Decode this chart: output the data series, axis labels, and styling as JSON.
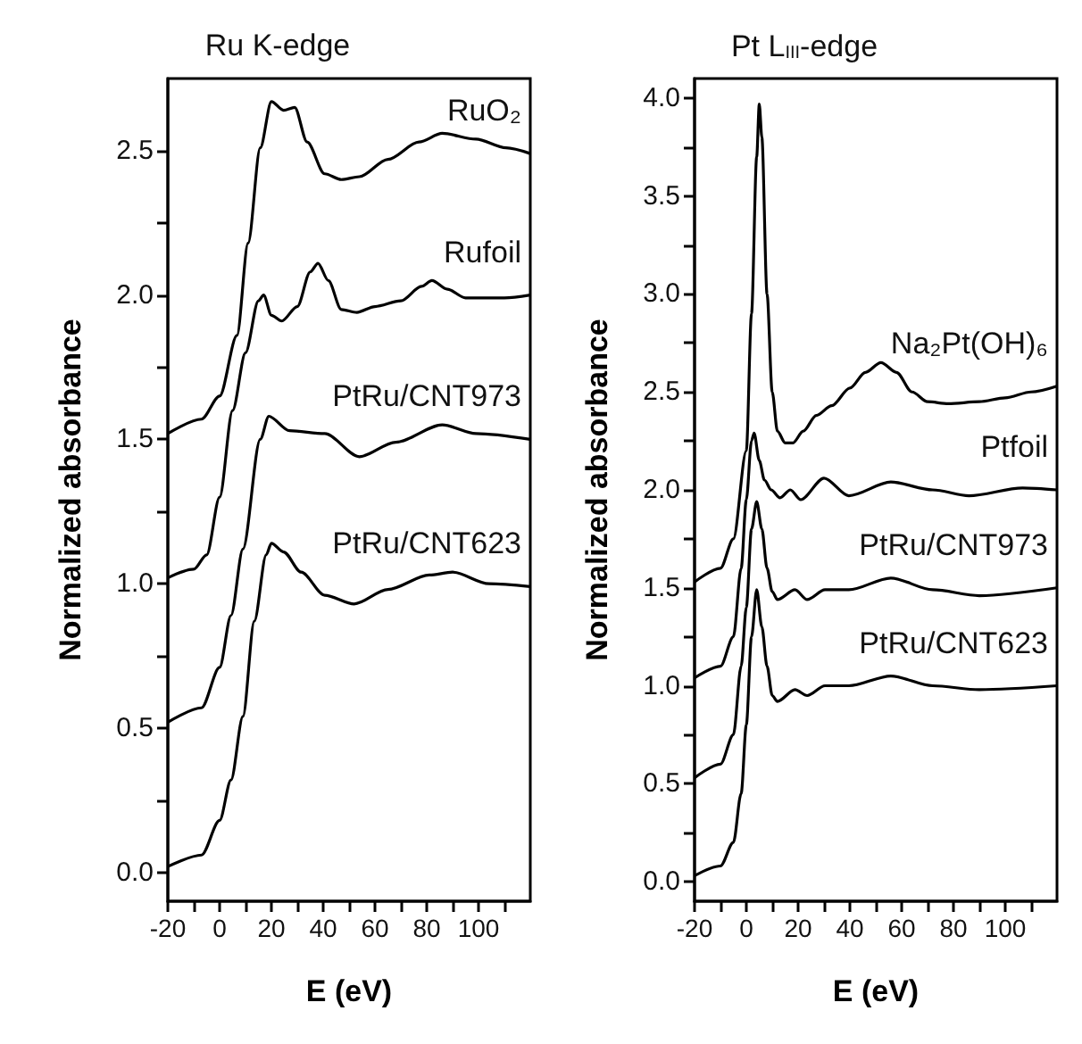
{
  "chart_data": [
    {
      "type": "line",
      "title": "Ru K-edge",
      "xlabel": "E (eV)",
      "ylabel": "Normalized absorbance",
      "xlim": [
        -20,
        120
      ],
      "ylim": [
        -0.1,
        2.75
      ],
      "xticks": [
        -20,
        {
          "value": -10,
          "label": null
        },
        0,
        {
          "value": 10,
          "label": null
        },
        20,
        {
          "value": 30,
          "label": null
        },
        40,
        {
          "value": 50,
          "label": null
        },
        60,
        {
          "value": 70,
          "label": null
        },
        80,
        {
          "value": 90,
          "label": null
        },
        100,
        {
          "value": 110,
          "label": null
        }
      ],
      "yticks": [
        {
          "value": 0,
          "label": "0.0"
        },
        {
          "value": 0.25,
          "label": null
        },
        0.5,
        {
          "value": 0.75,
          "label": null
        },
        {
          "value": 1,
          "label": "1.0"
        },
        {
          "value": 1.25,
          "label": null
        },
        1.5,
        {
          "value": 1.75,
          "label": null
        },
        {
          "value": 2,
          "label": "2.0"
        },
        {
          "value": 2.25,
          "label": null
        },
        2.5
      ],
      "series": [
        {
          "name": "RuO₂",
          "color": "#000000",
          "x": [
            -20,
            -7,
            0,
            6.7,
            11,
            15.7,
            20,
            24.7,
            29,
            33.8,
            40.6,
            47,
            54,
            65,
            77,
            86,
            99,
            110.6,
            120
          ],
          "values": [
            1.52,
            1.57,
            1.65,
            1.86,
            2.18,
            2.51,
            2.67,
            2.64,
            2.65,
            2.53,
            2.42,
            2.4,
            2.41,
            2.47,
            2.53,
            2.56,
            2.54,
            2.51,
            2.49
          ]
        },
        {
          "name": "Rufoil",
          "color": "#000000",
          "x": [
            -20,
            -10,
            -5,
            0,
            5,
            10,
            15,
            17,
            20,
            24,
            30,
            35,
            38,
            42,
            47,
            53,
            60,
            70,
            78,
            82,
            88,
            95,
            110,
            120
          ],
          "values": [
            1.02,
            1.05,
            1.1,
            1.3,
            1.6,
            1.8,
            1.98,
            2.0,
            1.93,
            1.91,
            1.96,
            2.08,
            2.11,
            2.05,
            1.95,
            1.94,
            1.96,
            1.98,
            2.03,
            2.05,
            2.02,
            1.99,
            1.99,
            2.0
          ]
        },
        {
          "name": "PtRu/CNT973",
          "color": "#000000",
          "x": [
            -20,
            -7,
            0,
            4.4,
            9,
            15.7,
            19,
            27,
            40.6,
            54,
            68,
            86,
            99,
            120
          ],
          "values": [
            0.52,
            0.57,
            0.71,
            0.89,
            1.12,
            1.5,
            1.58,
            1.53,
            1.52,
            1.44,
            1.49,
            1.55,
            1.52,
            1.5
          ]
        },
        {
          "name": "PtRu/CNT623",
          "color": "#000000",
          "x": [
            -20,
            -7,
            0,
            4.4,
            9,
            13.4,
            18,
            20,
            24.7,
            31.5,
            40.6,
            52,
            65,
            81,
            90,
            104,
            120
          ],
          "values": [
            0.02,
            0.06,
            0.18,
            0.32,
            0.54,
            0.87,
            1.1,
            1.14,
            1.11,
            1.04,
            0.96,
            0.93,
            0.98,
            1.03,
            1.04,
            1.0,
            0.99
          ]
        }
      ]
    },
    {
      "type": "line",
      "title": "Pt L$_{III}$-edge",
      "xlabel": "E (eV)",
      "ylabel": "Normalized absorbance",
      "xlim": [
        -20,
        120
      ],
      "ylim": [
        -0.1,
        4.1
      ],
      "xticks": [
        -20,
        {
          "value": -10,
          "label": null
        },
        0,
        {
          "value": 10,
          "label": null
        },
        20,
        {
          "value": 30,
          "label": null
        },
        40,
        {
          "value": 50,
          "label": null
        },
        60,
        {
          "value": 70,
          "label": null
        },
        80,
        {
          "value": 90,
          "label": null
        },
        100,
        {
          "value": 110,
          "label": null
        }
      ],
      "yticks": [
        {
          "value": 0,
          "label": "0.0"
        },
        {
          "value": 0.25,
          "label": null
        },
        0.5,
        {
          "value": 0.75,
          "label": null
        },
        {
          "value": 1,
          "label": "1.0"
        },
        {
          "value": 1.25,
          "label": null
        },
        1.5,
        {
          "value": 1.75,
          "label": null
        },
        {
          "value": 2,
          "label": "2.0"
        },
        {
          "value": 2.25,
          "label": null
        },
        2.5,
        {
          "value": 2.75,
          "label": null
        },
        {
          "value": 3,
          "label": "3.0"
        },
        {
          "value": 3.25,
          "label": null
        },
        3.5,
        {
          "value": 3.75,
          "label": null
        },
        {
          "value": 4,
          "label": "4.0"
        }
      ],
      "series": [
        {
          "name": "Na₂Pt(OH)₆",
          "color": "#000000",
          "x": [
            -20,
            -10,
            -5,
            0,
            2,
            4,
            5,
            6,
            8,
            10,
            12,
            15,
            18,
            22,
            27,
            33,
            40,
            46,
            52,
            58,
            64,
            70,
            78,
            90,
            100,
            110,
            120
          ],
          "values": [
            1.53,
            1.6,
            1.75,
            2.2,
            2.9,
            3.7,
            3.97,
            3.8,
            3.0,
            2.5,
            2.3,
            2.24,
            2.24,
            2.3,
            2.38,
            2.43,
            2.52,
            2.6,
            2.65,
            2.6,
            2.5,
            2.45,
            2.44,
            2.45,
            2.47,
            2.5,
            2.53
          ]
        },
        {
          "name": "Ptfoil",
          "color": "#000000",
          "x": [
            -20,
            -10,
            -5,
            -2,
            0,
            2,
            3,
            5,
            7,
            9.6,
            13,
            17,
            21,
            30,
            39.6,
            55.8,
            72,
            86,
            106.7,
            120
          ],
          "values": [
            1.04,
            1.1,
            1.25,
            1.6,
            1.95,
            2.25,
            2.29,
            2.15,
            2.05,
            2.0,
            1.96,
            2.0,
            1.95,
            2.06,
            1.97,
            2.04,
            2.0,
            1.97,
            2.01,
            2.0
          ]
        },
        {
          "name": "PtRu/CNT973",
          "color": "#000000",
          "x": [
            -20,
            -10,
            -5,
            -2,
            0,
            2,
            4,
            6,
            8,
            10,
            12,
            18.8,
            23.5,
            30.4,
            39.6,
            55.8,
            72,
            90,
            120
          ],
          "values": [
            0.53,
            0.6,
            0.75,
            1.1,
            1.4,
            1.8,
            1.94,
            1.8,
            1.6,
            1.48,
            1.44,
            1.49,
            1.44,
            1.49,
            1.49,
            1.55,
            1.49,
            1.46,
            1.5
          ]
        },
        {
          "name": "PtRu/CNT623",
          "color": "#000000",
          "x": [
            -20,
            -10,
            -5,
            -2,
            0,
            2,
            4,
            6,
            8,
            10,
            12,
            18.8,
            23.5,
            30.4,
            39.6,
            55.8,
            72,
            90,
            120
          ],
          "values": [
            0.03,
            0.08,
            0.2,
            0.45,
            0.8,
            1.25,
            1.49,
            1.3,
            1.1,
            0.95,
            0.92,
            0.98,
            0.95,
            1.0,
            1.0,
            1.05,
            1.0,
            0.98,
            1.0
          ]
        }
      ]
    }
  ]
}
